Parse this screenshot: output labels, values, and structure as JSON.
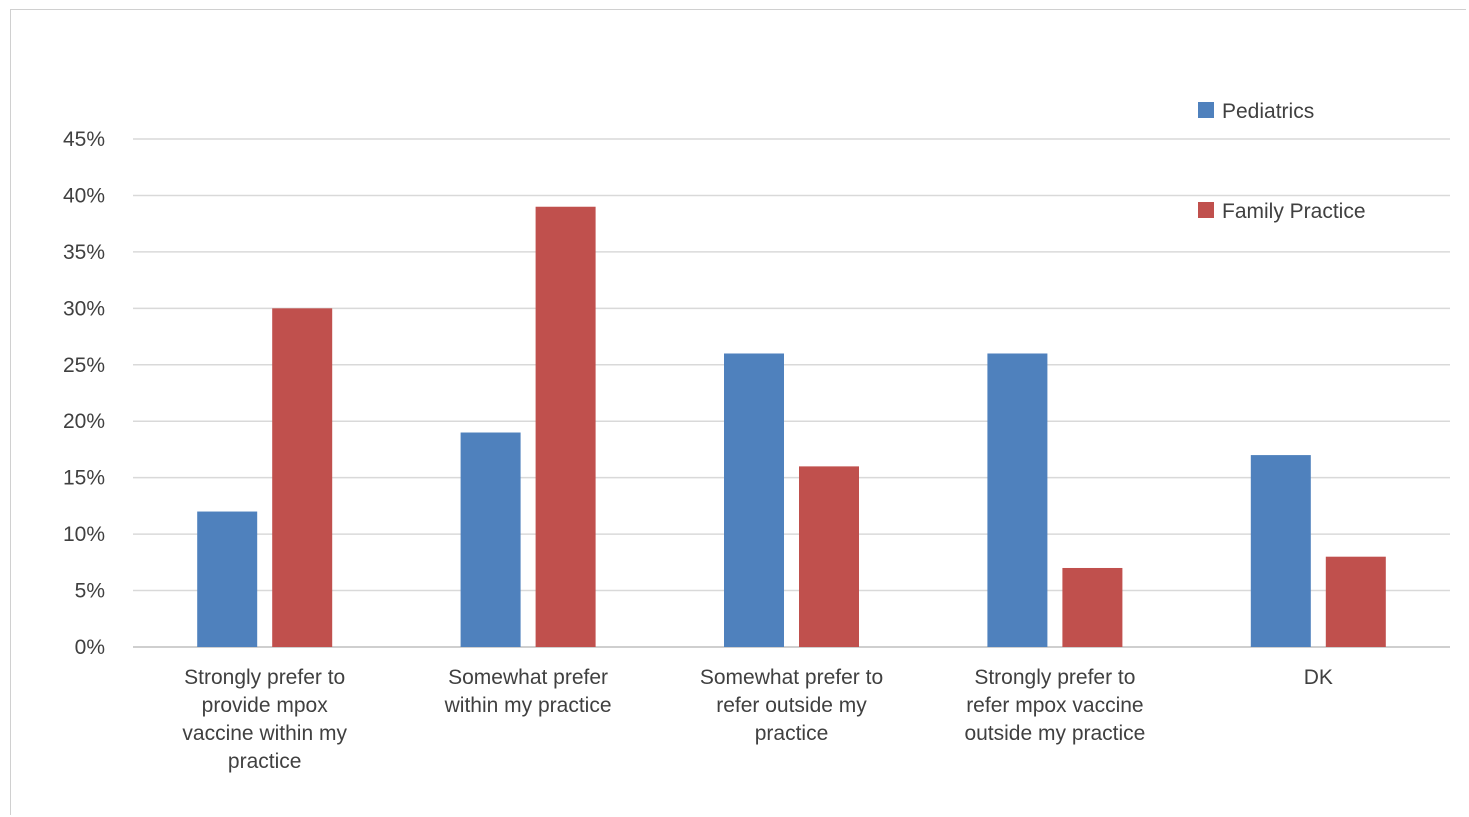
{
  "chart_data": {
    "type": "bar",
    "categories": [
      [
        "Strongly prefer to",
        "provide mpox",
        "vaccine within my",
        "practice"
      ],
      [
        "Somewhat prefer",
        "within my practice"
      ],
      [
        "Somewhat prefer to",
        "refer outside my",
        "practice"
      ],
      [
        "Strongly prefer to",
        "refer mpox vaccine",
        "outside my practice"
      ],
      [
        "DK"
      ]
    ],
    "series": [
      {
        "name": "Pediatrics",
        "values": [
          12,
          19,
          26,
          26,
          17
        ],
        "color": "#4f81bd"
      },
      {
        "name": "Family Practice",
        "values": [
          30,
          39,
          16,
          7,
          8
        ],
        "color": "#c0504d"
      }
    ],
    "ylim": [
      0,
      45
    ],
    "yticks": [
      "0%",
      "5%",
      "10%",
      "15%",
      "20%",
      "25%",
      "30%",
      "35%",
      "40%",
      "45%"
    ],
    "grid": true,
    "legend_position": "top-right",
    "title": "",
    "xlabel": "",
    "ylabel": ""
  }
}
